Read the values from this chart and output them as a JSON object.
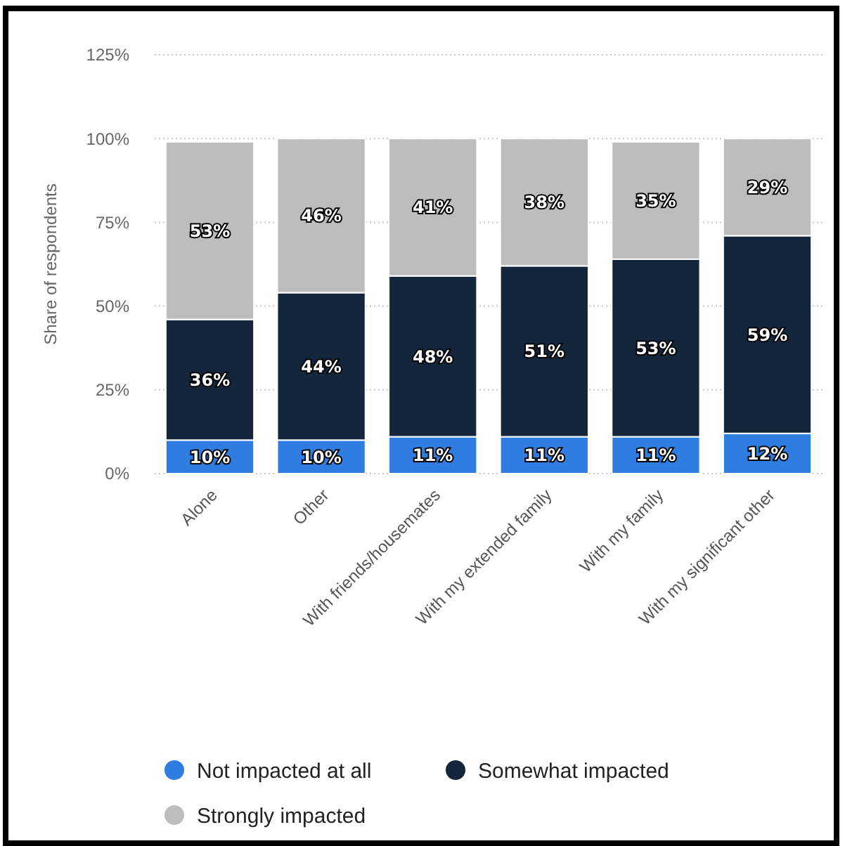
{
  "chart_data": {
    "type": "bar",
    "stacked": true,
    "ylabel": "Share of respondents",
    "categories": [
      "Alone",
      "Other",
      "With friends/housemates",
      "With my extended family",
      "With my family",
      "With my significant other"
    ],
    "series": [
      {
        "name": "Not impacted at all",
        "color": "#2f7de1",
        "values": [
          10,
          10,
          11,
          11,
          11,
          12
        ],
        "value_labels": [
          "10%",
          "10%",
          "11%",
          "11%",
          "11%",
          "12%"
        ]
      },
      {
        "name": "Somewhat impacted",
        "color": "#14263b",
        "values": [
          36,
          44,
          48,
          51,
          53,
          59
        ],
        "value_labels": [
          "36%",
          "44%",
          "48%",
          "51%",
          "53%",
          "59%"
        ]
      },
      {
        "name": "Strongly impacted",
        "color": "#bdbdbd",
        "values": [
          53,
          46,
          41,
          38,
          35,
          29
        ],
        "value_labels": [
          "53%",
          "46%",
          "41%",
          "38%",
          "35%",
          "29%"
        ]
      }
    ],
    "ylim": [
      0,
      125
    ],
    "yticks": [
      {
        "value": 0,
        "label": "0%"
      },
      {
        "value": 25,
        "label": "25%"
      },
      {
        "value": 50,
        "label": "50%"
      },
      {
        "value": 75,
        "label": "75%"
      },
      {
        "value": 100,
        "label": "100%"
      },
      {
        "value": 125,
        "label": "125%"
      }
    ],
    "grid": "y",
    "legend": "bottom"
  }
}
